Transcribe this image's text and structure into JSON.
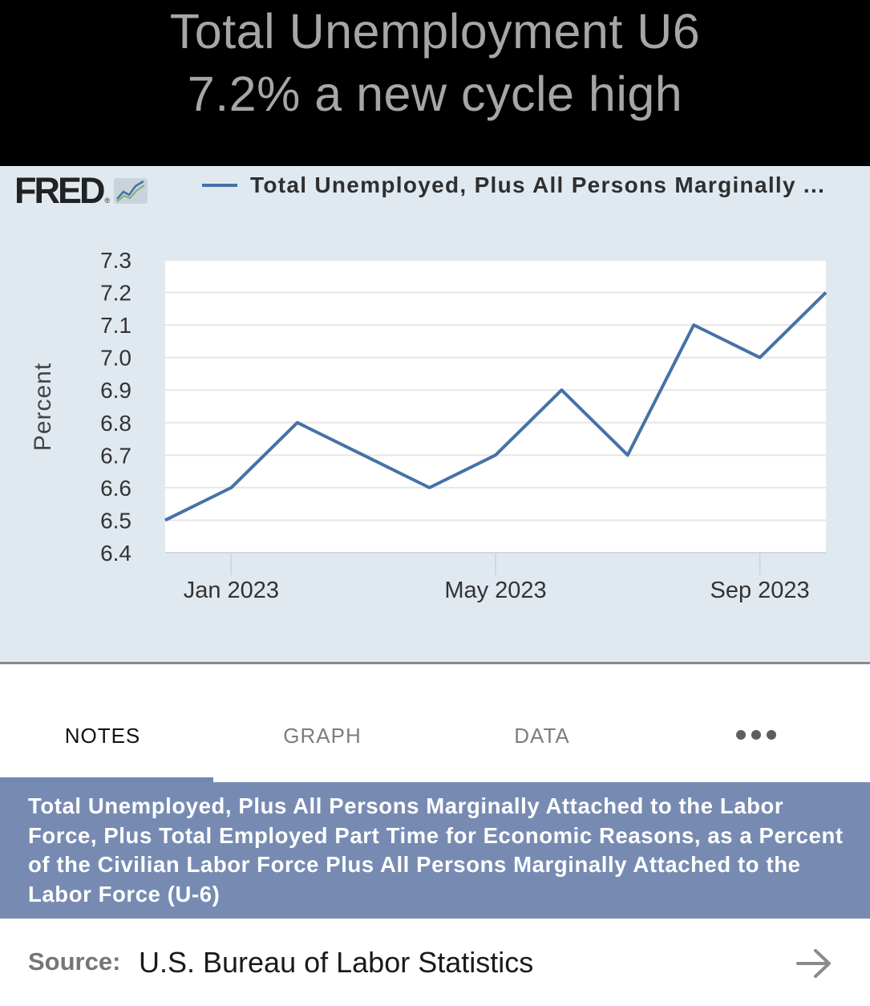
{
  "caption": {
    "line1": "Total Unemployment U6",
    "line2": "7.2% a new cycle high"
  },
  "fred": {
    "logo_text": "FRED",
    "reg_mark": "®",
    "legend_label": "Total Unemployed, Plus All Persons Marginally ..."
  },
  "chart_data": {
    "type": "line",
    "ylabel": "Percent",
    "ylim": [
      6.4,
      7.3
    ],
    "yticks": [
      "7.3",
      "7.2",
      "7.1",
      "7.0",
      "6.9",
      "6.8",
      "6.7",
      "6.6",
      "6.5",
      "6.4"
    ],
    "xticks": [
      "Jan 2023",
      "May 2023",
      "Sep 2023"
    ],
    "grid": true,
    "x": [
      "2022-12",
      "2023-01",
      "2023-02",
      "2023-03",
      "2023-04",
      "2023-05",
      "2023-06",
      "2023-07",
      "2023-08",
      "2023-09",
      "2023-10"
    ],
    "series": [
      {
        "name": "Total Unemployed, Plus All Persons Marginally ...",
        "color": "#4572a7",
        "values": [
          6.5,
          6.6,
          6.8,
          6.7,
          6.6,
          6.7,
          6.9,
          6.7,
          7.1,
          7.0,
          7.2
        ]
      }
    ]
  },
  "tabs": [
    {
      "label": "NOTES",
      "active": true
    },
    {
      "label": "GRAPH",
      "active": false
    },
    {
      "label": "DATA",
      "active": false
    }
  ],
  "more_icon": "more-horizontal-icon",
  "series_title": "Total Unemployed, Plus All Persons Marginally Attached to the Labor Force, Plus Total Employed Part Time for Economic Reasons, as a Percent of the Civilian Labor Force Plus All Persons Marginally Attached to the Labor Force (U-6)",
  "source": {
    "label": "Source:",
    "value": "U.S. Bureau of Labor Statistics",
    "icon": "arrow-right-icon"
  },
  "colors": {
    "line": "#4572a7",
    "panel_bg": "#e1e9f0",
    "title_band": "#778bb2"
  }
}
